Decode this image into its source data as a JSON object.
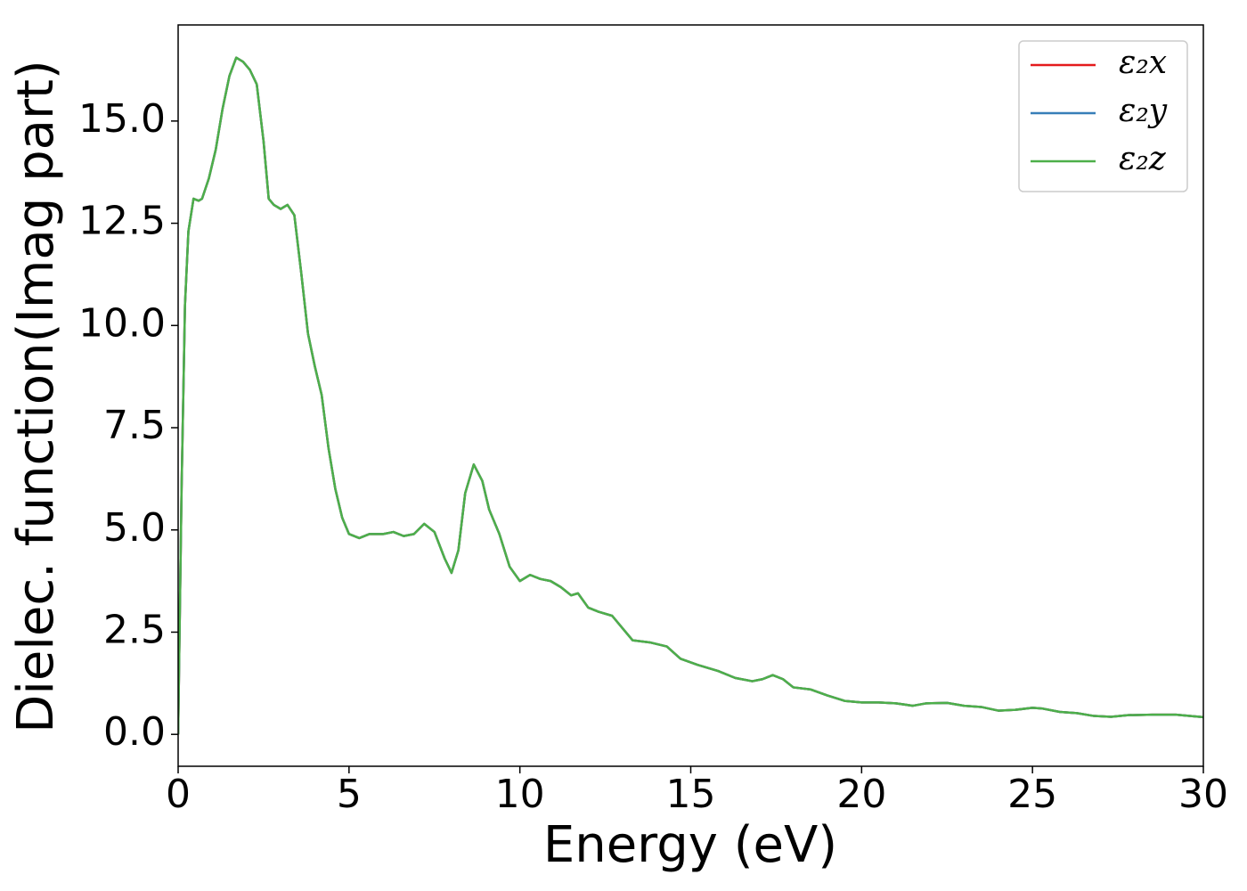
{
  "chart_data": {
    "type": "line",
    "xlabel": "Energy (eV)",
    "ylabel": "Dielec. function(Imag part)",
    "xlim": [
      0,
      30
    ],
    "ylim": [
      -0.78,
      17.35
    ],
    "xticks": [
      0,
      5,
      10,
      15,
      20,
      25,
      30
    ],
    "yticks": [
      {
        "value": 0,
        "label": "0.0"
      },
      2.5,
      {
        "value": 5,
        "label": "5.0"
      },
      7.5,
      {
        "value": 10,
        "label": "10.0"
      },
      12.5,
      {
        "value": 15,
        "label": "15.0"
      }
    ],
    "legend": "upper right",
    "x": [
      0,
      0.1,
      0.2,
      0.3,
      0.45,
      0.6,
      0.7,
      0.9,
      1.1,
      1.3,
      1.5,
      1.7,
      1.9,
      2.1,
      2.3,
      2.5,
      2.65,
      2.8,
      3.0,
      3.2,
      3.4,
      3.6,
      3.8,
      4.0,
      4.2,
      4.4,
      4.6,
      4.8,
      5.0,
      5.3,
      5.6,
      6.0,
      6.3,
      6.6,
      6.9,
      7.2,
      7.5,
      7.8,
      8.0,
      8.2,
      8.4,
      8.65,
      8.9,
      9.1,
      9.4,
      9.7,
      10.0,
      10.3,
      10.6,
      10.9,
      11.2,
      11.5,
      11.7,
      12.0,
      12.3,
      12.7,
      13.0,
      13.3,
      13.8,
      14.3,
      14.7,
      15.2,
      15.8,
      16.3,
      16.8,
      17.1,
      17.4,
      17.7,
      18.0,
      18.5,
      19.0,
      19.5,
      20.0,
      20.5,
      21.0,
      21.5,
      21.9,
      22.5,
      23.0,
      23.5,
      24.0,
      24.5,
      25.0,
      25.3,
      25.8,
      26.3,
      26.8,
      27.3,
      27.8,
      28.5,
      29.2,
      30
    ],
    "series": [
      {
        "name": "ε₂x",
        "color": "#e41a1c",
        "values": [
          0,
          6,
          10.5,
          12.3,
          13.1,
          13.05,
          13.1,
          13.6,
          14.3,
          15.3,
          16.1,
          16.55,
          16.45,
          16.25,
          15.9,
          14.5,
          13.1,
          12.95,
          12.85,
          12.95,
          12.7,
          11.3,
          9.8,
          9.0,
          8.3,
          7.0,
          6.0,
          5.3,
          4.9,
          4.8,
          4.9,
          4.9,
          4.95,
          4.85,
          4.9,
          5.15,
          4.95,
          4.3,
          3.95,
          4.5,
          5.9,
          6.6,
          6.2,
          5.5,
          4.9,
          4.1,
          3.75,
          3.9,
          3.8,
          3.75,
          3.6,
          3.4,
          3.45,
          3.1,
          3.0,
          2.9,
          2.6,
          2.3,
          2.25,
          2.15,
          1.85,
          1.7,
          1.55,
          1.38,
          1.3,
          1.35,
          1.45,
          1.35,
          1.15,
          1.1,
          0.95,
          0.82,
          0.78,
          0.78,
          0.76,
          0.7,
          0.76,
          0.77,
          0.7,
          0.67,
          0.58,
          0.6,
          0.65,
          0.63,
          0.55,
          0.52,
          0.45,
          0.43,
          0.47,
          0.48,
          0.48,
          0.42
        ]
      },
      {
        "name": "ε₂y",
        "color": "#377eb8",
        "values": [
          0,
          6,
          10.5,
          12.3,
          13.1,
          13.05,
          13.1,
          13.6,
          14.3,
          15.3,
          16.1,
          16.55,
          16.45,
          16.25,
          15.9,
          14.5,
          13.1,
          12.95,
          12.85,
          12.95,
          12.7,
          11.3,
          9.8,
          9.0,
          8.3,
          7.0,
          6.0,
          5.3,
          4.9,
          4.8,
          4.9,
          4.9,
          4.95,
          4.85,
          4.9,
          5.15,
          4.95,
          4.3,
          3.95,
          4.5,
          5.9,
          6.6,
          6.2,
          5.5,
          4.9,
          4.1,
          3.75,
          3.9,
          3.8,
          3.75,
          3.6,
          3.4,
          3.45,
          3.1,
          3.0,
          2.9,
          2.6,
          2.3,
          2.25,
          2.15,
          1.85,
          1.7,
          1.55,
          1.38,
          1.3,
          1.35,
          1.45,
          1.35,
          1.15,
          1.1,
          0.95,
          0.82,
          0.78,
          0.78,
          0.76,
          0.7,
          0.76,
          0.77,
          0.7,
          0.67,
          0.58,
          0.6,
          0.65,
          0.63,
          0.55,
          0.52,
          0.45,
          0.43,
          0.47,
          0.48,
          0.48,
          0.42
        ]
      },
      {
        "name": "ε₂z",
        "color": "#4daf4a",
        "values": [
          0,
          6,
          10.5,
          12.3,
          13.1,
          13.05,
          13.1,
          13.6,
          14.3,
          15.3,
          16.1,
          16.55,
          16.45,
          16.25,
          15.9,
          14.5,
          13.1,
          12.95,
          12.85,
          12.95,
          12.7,
          11.3,
          9.8,
          9.0,
          8.3,
          7.0,
          6.0,
          5.3,
          4.9,
          4.8,
          4.9,
          4.9,
          4.95,
          4.85,
          4.9,
          5.15,
          4.95,
          4.3,
          3.95,
          4.5,
          5.9,
          6.6,
          6.2,
          5.5,
          4.9,
          4.1,
          3.75,
          3.9,
          3.8,
          3.75,
          3.6,
          3.4,
          3.45,
          3.1,
          3.0,
          2.9,
          2.6,
          2.3,
          2.25,
          2.15,
          1.85,
          1.7,
          1.55,
          1.38,
          1.3,
          1.35,
          1.45,
          1.35,
          1.15,
          1.1,
          0.95,
          0.82,
          0.78,
          0.78,
          0.76,
          0.7,
          0.76,
          0.77,
          0.7,
          0.67,
          0.58,
          0.6,
          0.65,
          0.63,
          0.55,
          0.52,
          0.45,
          0.43,
          0.47,
          0.48,
          0.48,
          0.42
        ]
      }
    ]
  }
}
